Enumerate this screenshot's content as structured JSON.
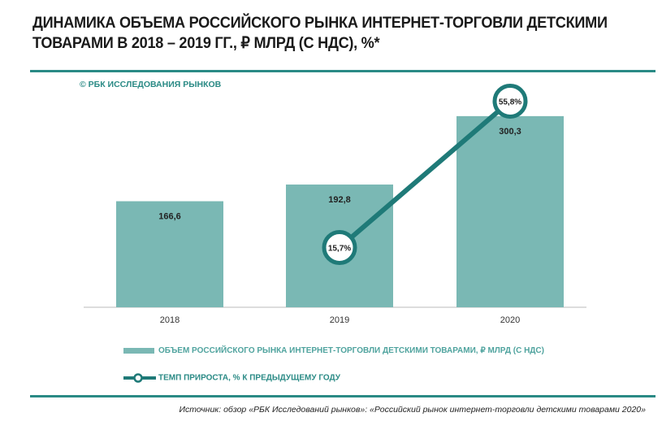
{
  "title": "ДИНАМИКА ОБЪЕМА РОССИЙСКОГО РЫНКА ИНТЕРНЕТ-ТОРГОВЛИ ДЕТСКИМИ ТОВАРАМИ В 2018 – 2019 ГГ., ₽ МЛРД (С НДС), %*",
  "watermark": "© РБК ИССЛЕДОВАНИЯ РЫНКОВ",
  "source": "Источник: обзор «РБК Исследований рынков»: «Российский рынок интернет-торговли детскими товарами 2020»",
  "colors": {
    "bar": "#7ab8b4",
    "line": "#1f7a78",
    "rule": "#2a8a85"
  },
  "chart_data": {
    "type": "bar",
    "categories": [
      "2018",
      "2019",
      "2020"
    ],
    "series": [
      {
        "name": "ОБЪЕМ РОССИЙСКОГО РЫНКА ИНТЕРНЕТ-ТОРГОВЛИ ДЕТСКИМИ ТОВАРАМИ, ₽ МЛРД  (С НДС)",
        "type": "bar",
        "values": [
          166.6,
          192.8,
          300.3
        ],
        "labels": [
          "166,6",
          "192,8",
          "300,3"
        ]
      },
      {
        "name": "ТЕМП ПРИРОСТА, % К ПРЕДЫДУЩЕМУ ГОДУ",
        "type": "line",
        "values": [
          null,
          15.7,
          55.8
        ],
        "labels": [
          "",
          "15,7%",
          "55,8%"
        ]
      }
    ],
    "grid": false,
    "legend": "bottom"
  }
}
